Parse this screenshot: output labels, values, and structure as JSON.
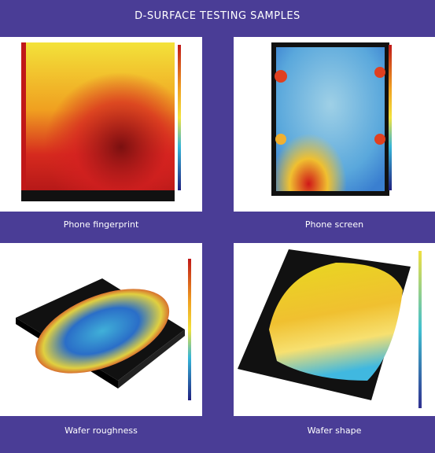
{
  "header": {
    "title": "D-SURFACE TESTING SAMPLES"
  },
  "samples": [
    {
      "label": "Phone fingerprint"
    },
    {
      "label": "Phone screen"
    },
    {
      "label": "Wafer roughness"
    },
    {
      "label": "Wafer shape"
    }
  ]
}
